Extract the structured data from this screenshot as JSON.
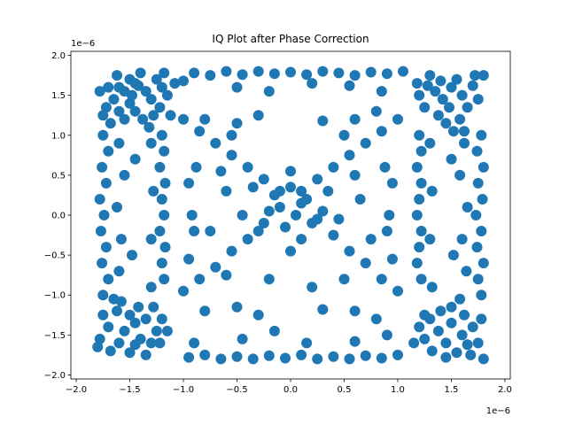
{
  "chart_data": {
    "type": "scatter",
    "title": "IQ Plot after Phase Correction",
    "xlabel": "",
    "ylabel": "",
    "x_offset_label": "1e−6",
    "y_offset_label": "1e−6",
    "xlim": [
      -2.05,
      2.05
    ],
    "ylim": [
      -2.05,
      2.05
    ],
    "x_ticks": [
      -2.0,
      -1.5,
      -1.0,
      -0.5,
      0.0,
      0.5,
      1.0,
      1.5,
      2.0
    ],
    "x_tick_labels": [
      "−2.0",
      "−1.5",
      "−1.0",
      "−0.5",
      "0.0",
      "0.5",
      "1.0",
      "1.5",
      "2.0"
    ],
    "y_ticks": [
      -2.0,
      -1.5,
      -1.0,
      -0.5,
      0.0,
      0.5,
      1.0,
      1.5,
      2.0
    ],
    "y_tick_labels": [
      "−2.0",
      "−1.5",
      "−1.0",
      "−0.5",
      "0.0",
      "0.5",
      "1.0",
      "1.5",
      "2.0"
    ],
    "grid": false,
    "marker_color": "#1f77b4",
    "points": [
      [
        -1.55,
        1.55
      ],
      [
        -1.6,
        1.6
      ],
      [
        -1.48,
        1.5
      ],
      [
        -1.42,
        1.62
      ],
      [
        -1.65,
        1.45
      ],
      [
        -1.5,
        1.7
      ],
      [
        -1.35,
        1.55
      ],
      [
        -1.7,
        1.6
      ],
      [
        -1.25,
        1.7
      ],
      [
        -1.2,
        1.6
      ],
      [
        -1.3,
        1.45
      ],
      [
        -1.15,
        1.5
      ],
      [
        -1.22,
        1.35
      ],
      [
        -1.18,
        1.78
      ],
      [
        -1.6,
        1.3
      ],
      [
        -1.45,
        1.3
      ],
      [
        -1.72,
        1.35
      ],
      [
        -1.55,
        1.2
      ],
      [
        -1.38,
        1.2
      ],
      [
        -1.62,
        1.75
      ],
      [
        -1.4,
        1.78
      ],
      [
        -1.28,
        1.25
      ],
      [
        -1.78,
        1.55
      ],
      [
        -1.5,
        1.4
      ],
      [
        -1.68,
        1.15
      ],
      [
        -1.32,
        1.1
      ],
      [
        -1.12,
        1.25
      ],
      [
        -1.08,
        1.65
      ],
      [
        -1.75,
        1.25
      ],
      [
        -1.45,
        1.65
      ],
      [
        1.35,
        1.55
      ],
      [
        1.5,
        1.6
      ],
      [
        1.42,
        1.45
      ],
      [
        1.6,
        1.5
      ],
      [
        1.55,
        1.7
      ],
      [
        1.28,
        1.62
      ],
      [
        1.7,
        1.62
      ],
      [
        1.48,
        1.35
      ],
      [
        1.2,
        1.5
      ],
      [
        1.65,
        1.35
      ],
      [
        1.38,
        1.25
      ],
      [
        1.72,
        1.75
      ],
      [
        1.58,
        1.2
      ],
      [
        1.25,
        1.35
      ],
      [
        1.8,
        1.75
      ],
      [
        1.3,
        1.75
      ],
      [
        1.45,
        1.15
      ],
      [
        1.75,
        1.45
      ],
      [
        1.18,
        1.65
      ],
      [
        1.62,
        1.05
      ],
      [
        1.52,
        1.05
      ],
      [
        1.4,
        1.68
      ],
      [
        -1.55,
        -1.45
      ],
      [
        -1.45,
        -1.35
      ],
      [
        -1.6,
        -1.6
      ],
      [
        -1.4,
        -1.55
      ],
      [
        -1.7,
        -1.4
      ],
      [
        -1.5,
        -1.25
      ],
      [
        -1.35,
        -1.3
      ],
      [
        -1.62,
        -1.2
      ],
      [
        -1.25,
        -1.45
      ],
      [
        -1.78,
        -1.55
      ],
      [
        -1.3,
        -1.6
      ],
      [
        -1.5,
        -1.72
      ],
      [
        -1.68,
        -1.7
      ],
      [
        -1.2,
        -1.3
      ],
      [
        -1.42,
        -1.15
      ],
      [
        -1.75,
        -1.25
      ],
      [
        -1.22,
        -1.6
      ],
      [
        -1.58,
        -1.08
      ],
      [
        -1.35,
        -1.75
      ],
      [
        -1.8,
        -1.65
      ],
      [
        -1.15,
        -1.45
      ],
      [
        -1.45,
        -1.62
      ],
      [
        -1.65,
        -1.05
      ],
      [
        -1.28,
        -1.15
      ],
      [
        1.38,
        -1.45
      ],
      [
        1.5,
        -1.35
      ],
      [
        1.45,
        -1.6
      ],
      [
        1.6,
        -1.5
      ],
      [
        1.3,
        -1.3
      ],
      [
        1.55,
        -1.72
      ],
      [
        1.7,
        -1.4
      ],
      [
        1.25,
        -1.55
      ],
      [
        1.62,
        -1.25
      ],
      [
        1.4,
        -1.2
      ],
      [
        1.75,
        -1.6
      ],
      [
        1.2,
        -1.4
      ],
      [
        1.5,
        -1.15
      ],
      [
        1.68,
        -1.75
      ],
      [
        1.32,
        -1.7
      ],
      [
        1.78,
        -1.3
      ],
      [
        1.15,
        -1.6
      ],
      [
        1.45,
        -1.78
      ],
      [
        1.58,
        -1.05
      ],
      [
        1.8,
        -1.8
      ],
      [
        1.25,
        -1.25
      ],
      [
        1.65,
        -1.62
      ],
      [
        -0.9,
        1.78
      ],
      [
        -0.75,
        1.75
      ],
      [
        -0.6,
        1.8
      ],
      [
        -0.45,
        1.76
      ],
      [
        -0.3,
        1.8
      ],
      [
        -0.15,
        1.77
      ],
      [
        0.0,
        1.79
      ],
      [
        0.15,
        1.76
      ],
      [
        0.3,
        1.8
      ],
      [
        0.45,
        1.78
      ],
      [
        0.6,
        1.75
      ],
      [
        0.75,
        1.79
      ],
      [
        0.9,
        1.77
      ],
      [
        1.05,
        1.8
      ],
      [
        -1.0,
        1.68
      ],
      [
        0.2,
        1.65
      ],
      [
        -0.5,
        1.6
      ],
      [
        0.55,
        1.62
      ],
      [
        -0.2,
        1.55
      ],
      [
        0.85,
        1.55
      ],
      [
        -0.95,
        -1.78
      ],
      [
        -0.8,
        -1.75
      ],
      [
        -0.65,
        -1.8
      ],
      [
        -0.5,
        -1.77
      ],
      [
        -0.35,
        -1.8
      ],
      [
        -0.2,
        -1.76
      ],
      [
        -0.05,
        -1.79
      ],
      [
        0.1,
        -1.75
      ],
      [
        0.25,
        -1.8
      ],
      [
        0.4,
        -1.77
      ],
      [
        0.55,
        -1.8
      ],
      [
        0.7,
        -1.76
      ],
      [
        0.85,
        -1.79
      ],
      [
        1.0,
        -1.75
      ],
      [
        -0.9,
        -1.6
      ],
      [
        0.15,
        -1.6
      ],
      [
        -0.45,
        -1.55
      ],
      [
        0.6,
        -1.58
      ],
      [
        -0.15,
        -1.45
      ],
      [
        0.9,
        -1.5
      ],
      [
        -1.75,
        1.0
      ],
      [
        -1.7,
        0.8
      ],
      [
        -1.76,
        0.6
      ],
      [
        -1.72,
        0.4
      ],
      [
        -1.78,
        0.2
      ],
      [
        -1.74,
        0.0
      ],
      [
        -1.77,
        -0.2
      ],
      [
        -1.72,
        -0.4
      ],
      [
        -1.76,
        -0.6
      ],
      [
        -1.7,
        -0.8
      ],
      [
        -1.75,
        -1.0
      ],
      [
        -1.6,
        0.9
      ],
      [
        -1.55,
        0.5
      ],
      [
        -1.62,
        0.1
      ],
      [
        -1.58,
        -0.3
      ],
      [
        -1.6,
        -0.7
      ],
      [
        -1.45,
        0.7
      ],
      [
        -1.48,
        -0.5
      ],
      [
        1.78,
        1.0
      ],
      [
        1.74,
        0.8
      ],
      [
        1.8,
        0.6
      ],
      [
        1.75,
        0.4
      ],
      [
        1.79,
        0.2
      ],
      [
        1.73,
        0.0
      ],
      [
        1.78,
        -0.2
      ],
      [
        1.74,
        -0.4
      ],
      [
        1.8,
        -0.6
      ],
      [
        1.75,
        -0.8
      ],
      [
        1.78,
        -1.0
      ],
      [
        1.62,
        0.9
      ],
      [
        1.58,
        0.5
      ],
      [
        1.65,
        0.1
      ],
      [
        1.6,
        -0.3
      ],
      [
        1.64,
        -0.7
      ],
      [
        1.5,
        0.7
      ],
      [
        1.52,
        -0.5
      ],
      [
        -1.2,
        1.0
      ],
      [
        -1.18,
        0.8
      ],
      [
        -1.22,
        0.6
      ],
      [
        -1.17,
        0.4
      ],
      [
        -1.2,
        0.2
      ],
      [
        -1.18,
        0.0
      ],
      [
        -1.22,
        -0.2
      ],
      [
        -1.17,
        -0.4
      ],
      [
        -1.2,
        -0.6
      ],
      [
        -1.18,
        -0.8
      ],
      [
        -1.3,
        0.9
      ],
      [
        -1.28,
        0.3
      ],
      [
        -1.3,
        -0.3
      ],
      [
        -1.3,
        -0.9
      ],
      [
        1.2,
        1.0
      ],
      [
        1.22,
        0.8
      ],
      [
        1.18,
        0.6
      ],
      [
        1.22,
        0.4
      ],
      [
        1.2,
        0.2
      ],
      [
        1.18,
        0.0
      ],
      [
        1.22,
        -0.2
      ],
      [
        1.2,
        -0.4
      ],
      [
        1.18,
        -0.6
      ],
      [
        1.22,
        -0.8
      ],
      [
        1.3,
        0.9
      ],
      [
        1.32,
        0.3
      ],
      [
        1.3,
        -0.3
      ],
      [
        1.32,
        -0.9
      ],
      [
        -1.0,
        1.2
      ],
      [
        -0.85,
        1.05
      ],
      [
        -0.7,
        0.9
      ],
      [
        -0.55,
        0.75
      ],
      [
        -0.4,
        0.6
      ],
      [
        -0.25,
        0.45
      ],
      [
        -0.1,
        0.3
      ],
      [
        0.1,
        0.15
      ],
      [
        0.25,
        -0.05
      ],
      [
        0.4,
        -0.25
      ],
      [
        0.55,
        -0.45
      ],
      [
        0.7,
        -0.6
      ],
      [
        0.85,
        -0.8
      ],
      [
        1.0,
        -0.95
      ],
      [
        1.0,
        1.2
      ],
      [
        0.85,
        1.05
      ],
      [
        0.7,
        0.9
      ],
      [
        0.55,
        0.75
      ],
      [
        0.4,
        0.6
      ],
      [
        0.25,
        0.45
      ],
      [
        0.1,
        0.3
      ],
      [
        -0.1,
        0.1
      ],
      [
        -0.25,
        -0.1
      ],
      [
        -0.4,
        -0.3
      ],
      [
        -0.55,
        -0.45
      ],
      [
        -0.7,
        -0.65
      ],
      [
        -0.85,
        -0.8
      ],
      [
        -1.0,
        -0.95
      ],
      [
        -0.8,
        1.2
      ],
      [
        -0.5,
        1.15
      ],
      [
        0.3,
        1.18
      ],
      [
        0.6,
        1.2
      ],
      [
        0.8,
        1.3
      ],
      [
        -0.3,
        1.25
      ],
      [
        -0.8,
        -1.2
      ],
      [
        -0.5,
        -1.15
      ],
      [
        0.3,
        -1.18
      ],
      [
        0.6,
        -1.2
      ],
      [
        0.8,
        -1.3
      ],
      [
        -0.3,
        -1.25
      ],
      [
        -0.95,
        0.4
      ],
      [
        -0.9,
        -0.2
      ],
      [
        -0.92,
        0.0
      ],
      [
        -0.88,
        0.6
      ],
      [
        -0.95,
        -0.55
      ],
      [
        0.95,
        0.4
      ],
      [
        0.9,
        -0.2
      ],
      [
        0.92,
        0.0
      ],
      [
        0.88,
        0.6
      ],
      [
        0.95,
        -0.55
      ],
      [
        0.0,
        0.35
      ],
      [
        0.15,
        0.2
      ],
      [
        -0.15,
        0.25
      ],
      [
        0.05,
        0.0
      ],
      [
        -0.05,
        -0.15
      ],
      [
        0.2,
        -0.1
      ],
      [
        -0.2,
        0.05
      ],
      [
        0.1,
        -0.3
      ],
      [
        0.3,
        0.05
      ],
      [
        -0.3,
        -0.2
      ],
      [
        0.0,
        0.55
      ],
      [
        0.35,
        0.3
      ],
      [
        -0.35,
        0.35
      ],
      [
        0.0,
        -0.45
      ],
      [
        0.45,
        -0.05
      ],
      [
        -0.45,
        0.0
      ],
      [
        -0.6,
        0.3
      ],
      [
        0.65,
        0.2
      ],
      [
        0.5,
        -0.8
      ],
      [
        -0.6,
        -0.75
      ],
      [
        0.2,
        -0.9
      ],
      [
        -0.2,
        -0.8
      ],
      [
        0.75,
        -0.3
      ],
      [
        -0.75,
        -0.2
      ],
      [
        0.5,
        1.0
      ],
      [
        -0.55,
        1.0
      ],
      [
        0.6,
        0.5
      ],
      [
        -0.65,
        0.55
      ]
    ]
  }
}
